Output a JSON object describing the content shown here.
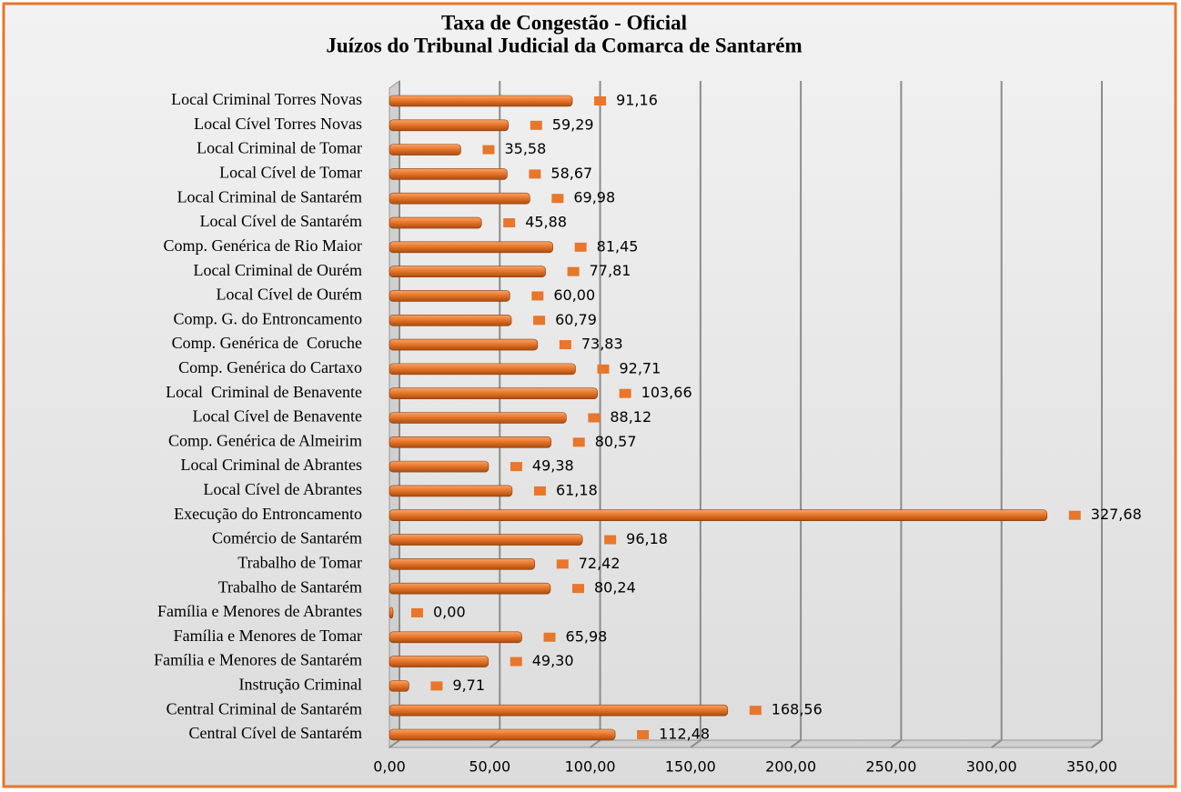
{
  "chart_data": {
    "type": "barh",
    "title": "Taxa de Congestão - Oficial",
    "subtitle": "Juízos do Tribunal Judicial da Comarca de Santarém",
    "categories": [
      "Local Criminal Torres Novas",
      "Local Cível Torres Novas",
      "Local Criminal de Tomar",
      "Local Cível de Tomar",
      "Local Criminal de Santarém",
      "Local Cível de Santarém",
      "Comp. Genérica de Rio Maior",
      "Local Criminal de Ourém",
      "Local Cível de Ourém",
      "Comp. G. do Entroncamento",
      "Comp. Genérica de  Coruche",
      "Comp. Genérica do Cartaxo",
      "Local  Criminal de Benavente",
      "Local Cível de Benavente",
      "Comp. Genérica de Almeirim",
      "Local Criminal de Abrantes",
      "Local Cível de Abrantes",
      "Execução do Entroncamento",
      "Comércio de Santarém",
      "Trabalho de Tomar",
      "Trabalho de Santarém",
      "Família e Menores de Abrantes",
      "Família e Menores de Tomar",
      "Família e Menores de Santarém",
      "Instrução Criminal",
      "Central Criminal de Santarém",
      "Central Cível de Santarém"
    ],
    "values": [
      91.16,
      59.29,
      35.58,
      58.67,
      69.98,
      45.88,
      81.45,
      77.81,
      60.0,
      60.79,
      73.83,
      92.71,
      103.66,
      88.12,
      80.57,
      49.38,
      61.18,
      327.68,
      96.18,
      72.42,
      80.24,
      0.0,
      65.98,
      49.3,
      9.71,
      168.56,
      112.48
    ],
    "value_labels": [
      "91,16",
      "59,29",
      "35,58",
      "58,67",
      "69,98",
      "45,88",
      "81,45",
      "77,81",
      "60,00",
      "60,79",
      "73,83",
      "92,71",
      "103,66",
      "88,12",
      "80,57",
      "49,38",
      "61,18",
      "327,68",
      "96,18",
      "72,42",
      "80,24",
      "0,00",
      "65,98",
      "49,30",
      "9,71",
      "168,56",
      "112,48"
    ],
    "color": "#e8762b",
    "xlim": [
      0,
      350
    ],
    "xticks": [
      {
        "value": 0,
        "label": "0,00"
      },
      {
        "value": 50,
        "label": "50,00"
      },
      {
        "value": 100,
        "label": "100,00"
      },
      {
        "value": 150,
        "label": "150,00"
      },
      {
        "value": 200,
        "label": "200,00"
      },
      {
        "value": 250,
        "label": "250,00"
      },
      {
        "value": 300,
        "label": "300,00"
      },
      {
        "value": 350,
        "label": "350,00"
      }
    ],
    "grid": true
  }
}
